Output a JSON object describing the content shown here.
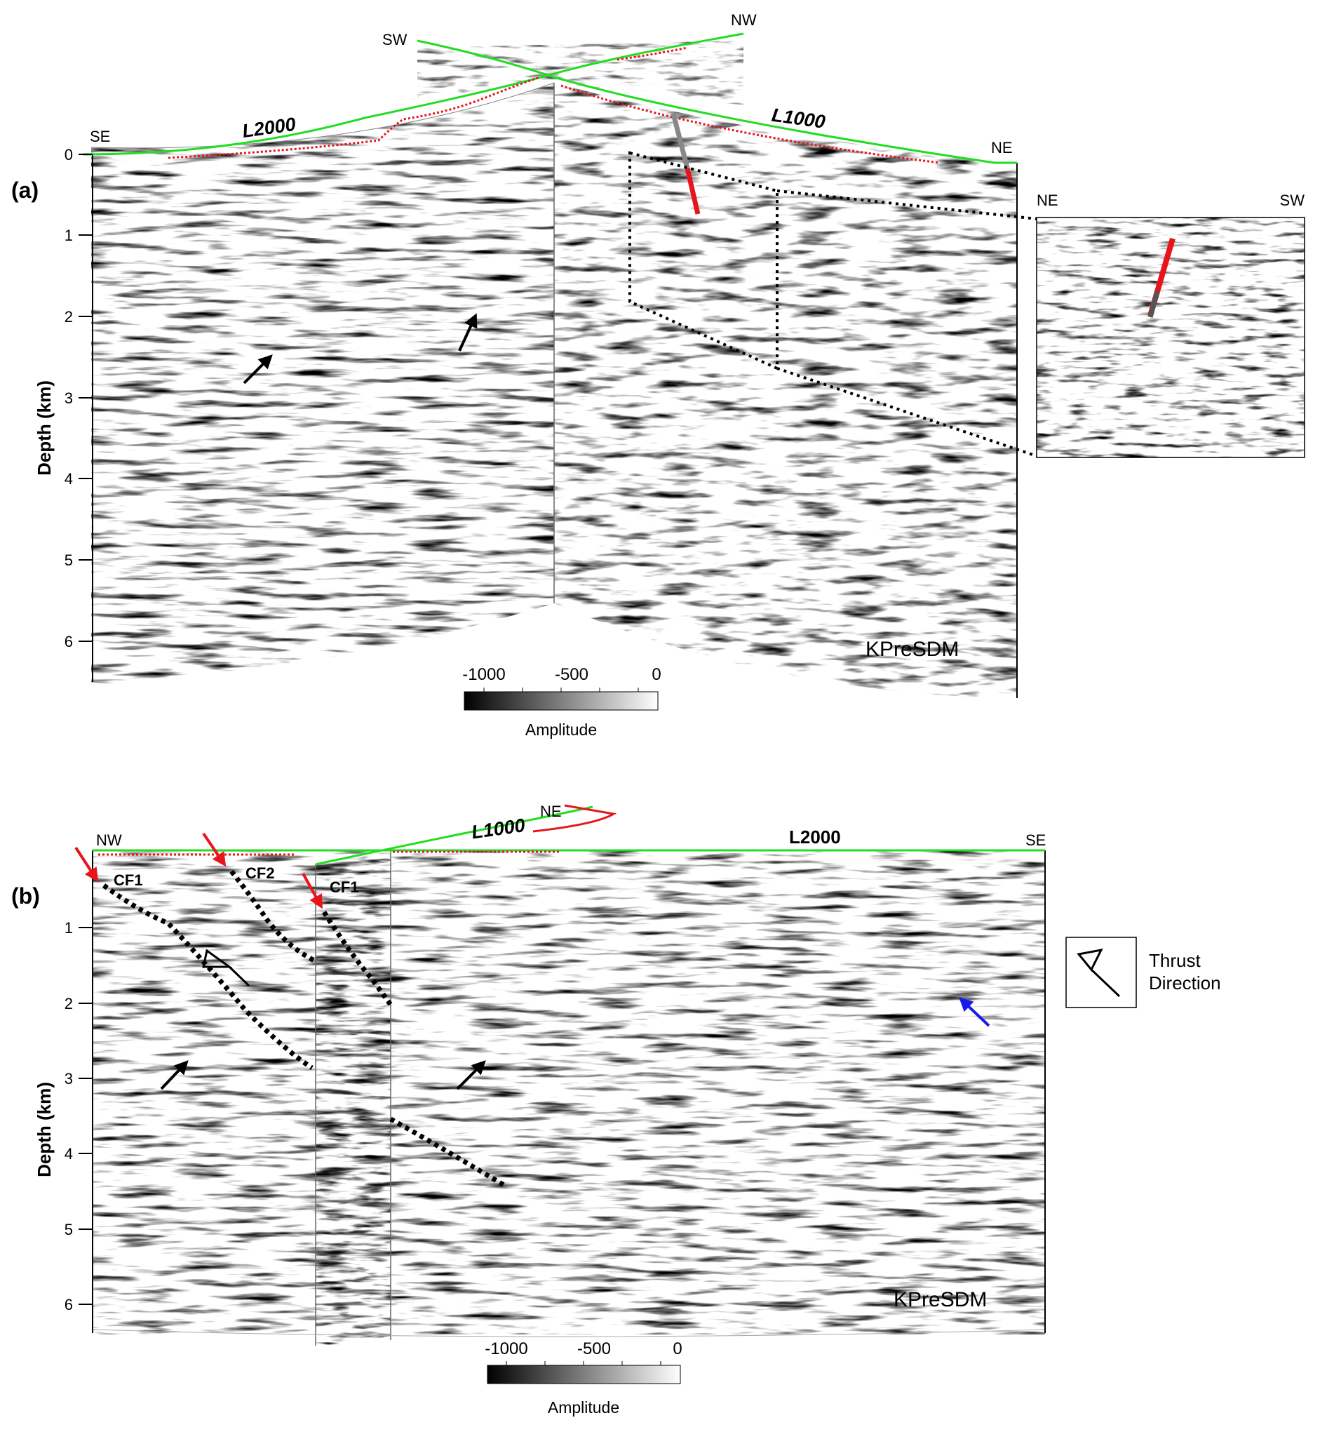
{
  "colors": {
    "surface": "#22dd22",
    "receivers": "#e8141c",
    "ink": "#000000",
    "panel_a_arrow": "#000000",
    "fault_arrow": "#e8141c",
    "blue_arrow": "#1a1ae8"
  },
  "panel_a": {
    "tag": "(a)",
    "y_axis_label": "Depth (km)",
    "y_ticks": [
      "0",
      "1",
      "2",
      "3",
      "4",
      "5",
      "6"
    ],
    "line_left": "L2000",
    "line_right": "L1000",
    "dir_se": "SE",
    "dir_sw": "SW",
    "dir_nw": "NW",
    "dir_ne": "NE",
    "method": "KPreSDM",
    "inset_left": "NE",
    "inset_right": "SW",
    "colorbar_ticks": [
      "-1000",
      "-500",
      "0"
    ],
    "colorbar_label": "Amplitude"
  },
  "panel_b": {
    "tag": "(b)",
    "y_axis_label": "Depth (km)",
    "y_ticks": [
      "1",
      "2",
      "3",
      "4",
      "5",
      "6"
    ],
    "line_top": "L1000",
    "line_main": "L2000",
    "dir_nw": "NW",
    "dir_ne": "NE",
    "dir_se": "SE",
    "fault_cf1_left": "CF1",
    "fault_cf2": "CF2",
    "fault_cf1_mid": "CF1",
    "method": "KPreSDM",
    "colorbar_ticks": [
      "-1000",
      "-500",
      "0"
    ],
    "colorbar_label": "Amplitude",
    "legend_line1": "Thrust",
    "legend_line2": "Direction",
    "legend_icon": "thrust-direction-icon"
  }
}
